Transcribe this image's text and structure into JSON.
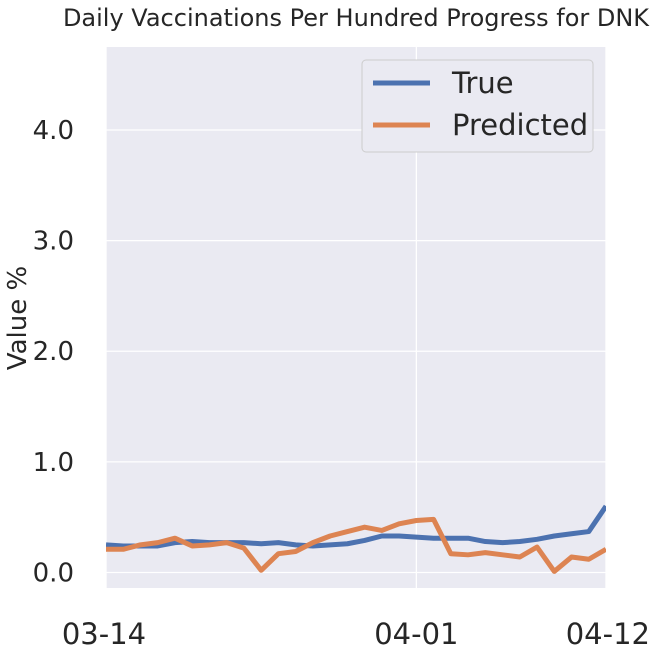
{
  "chart_data": {
    "type": "line",
    "title": "Daily Vaccinations Per Hundred Progress for DNK",
    "xlabel": "",
    "ylabel": "Value %",
    "x_ticks": [
      "03-14",
      "04-01",
      "04-12"
    ],
    "x_dates": [
      "03-14",
      "03-15",
      "03-16",
      "03-17",
      "03-18",
      "03-19",
      "03-20",
      "03-21",
      "03-22",
      "03-23",
      "03-24",
      "03-25",
      "03-26",
      "03-27",
      "03-28",
      "03-29",
      "03-30",
      "03-31",
      "04-01",
      "04-02",
      "04-03",
      "04-04",
      "04-05",
      "04-06",
      "04-07",
      "04-08",
      "04-09",
      "04-10",
      "04-11",
      "04-12"
    ],
    "y_ticks": [
      0.0,
      1.0,
      2.0,
      3.0,
      4.0
    ],
    "y_tick_labels": [
      "0.0",
      "1.0",
      "2.0",
      "3.0",
      "4.0"
    ],
    "ylim": [
      -0.14,
      4.75
    ],
    "grid": true,
    "legend_position": "top-right",
    "series": [
      {
        "name": "True",
        "color": "#4c72b0",
        "values": [
          0.25,
          0.24,
          0.24,
          0.24,
          0.27,
          0.28,
          0.27,
          0.27,
          0.27,
          0.26,
          0.27,
          0.25,
          0.24,
          0.25,
          0.26,
          0.29,
          0.33,
          0.33,
          0.32,
          0.31,
          0.31,
          0.31,
          0.28,
          0.27,
          0.28,
          0.3,
          0.33,
          0.35,
          0.37,
          0.6
        ]
      },
      {
        "name": "Predicted",
        "color": "#dd8452",
        "values": [
          0.21,
          0.21,
          0.25,
          0.27,
          0.31,
          0.24,
          0.25,
          0.27,
          0.22,
          0.02,
          0.17,
          0.19,
          0.27,
          0.33,
          0.37,
          0.41,
          0.38,
          0.44,
          0.47,
          0.48,
          0.17,
          0.16,
          0.18,
          0.16,
          0.14,
          0.23,
          0.01,
          0.14,
          0.12,
          0.21
        ]
      }
    ]
  }
}
